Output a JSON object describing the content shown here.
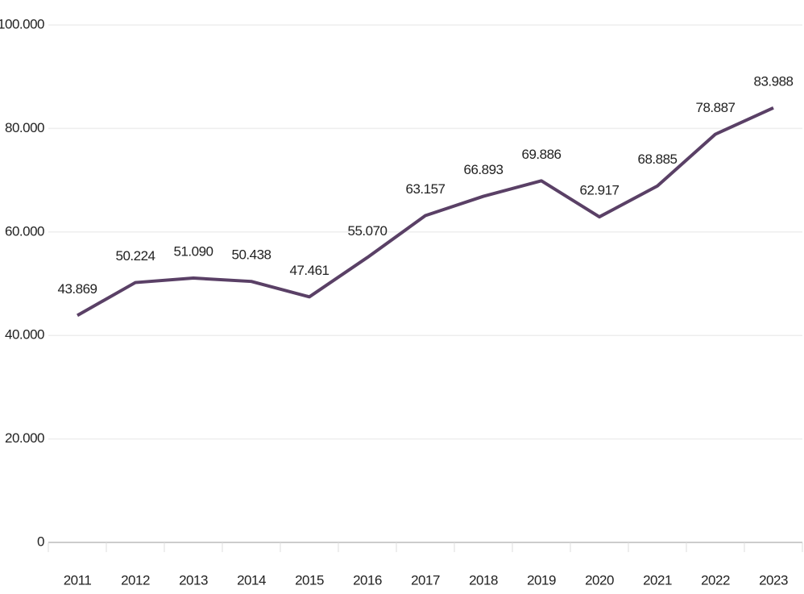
{
  "chart_data": {
    "type": "line",
    "categories": [
      "2011",
      "2012",
      "2013",
      "2014",
      "2015",
      "2016",
      "2017",
      "2018",
      "2019",
      "2020",
      "2021",
      "2022",
      "2023"
    ],
    "values": [
      43869,
      50224,
      51090,
      50438,
      47461,
      55070,
      63157,
      66893,
      69886,
      62917,
      68885,
      78887,
      83988
    ],
    "value_labels": [
      "43.869",
      "50.224",
      "51.090",
      "50.438",
      "47.461",
      "55.070",
      "63.157",
      "66.893",
      "69.886",
      "62.917",
      "68.885",
      "78.887",
      "83.988"
    ],
    "color": "#5a4066",
    "ylim": [
      0,
      100000
    ],
    "yticks": [
      0,
      {
        "value": 20000,
        "label": "20.000"
      },
      {
        "value": 40000,
        "label": "40.000"
      },
      {
        "value": 60000,
        "label": "60.000"
      },
      {
        "value": 80000,
        "label": "80.000"
      },
      {
        "value": 100000,
        "label": "100.000"
      }
    ],
    "grid": true
  }
}
